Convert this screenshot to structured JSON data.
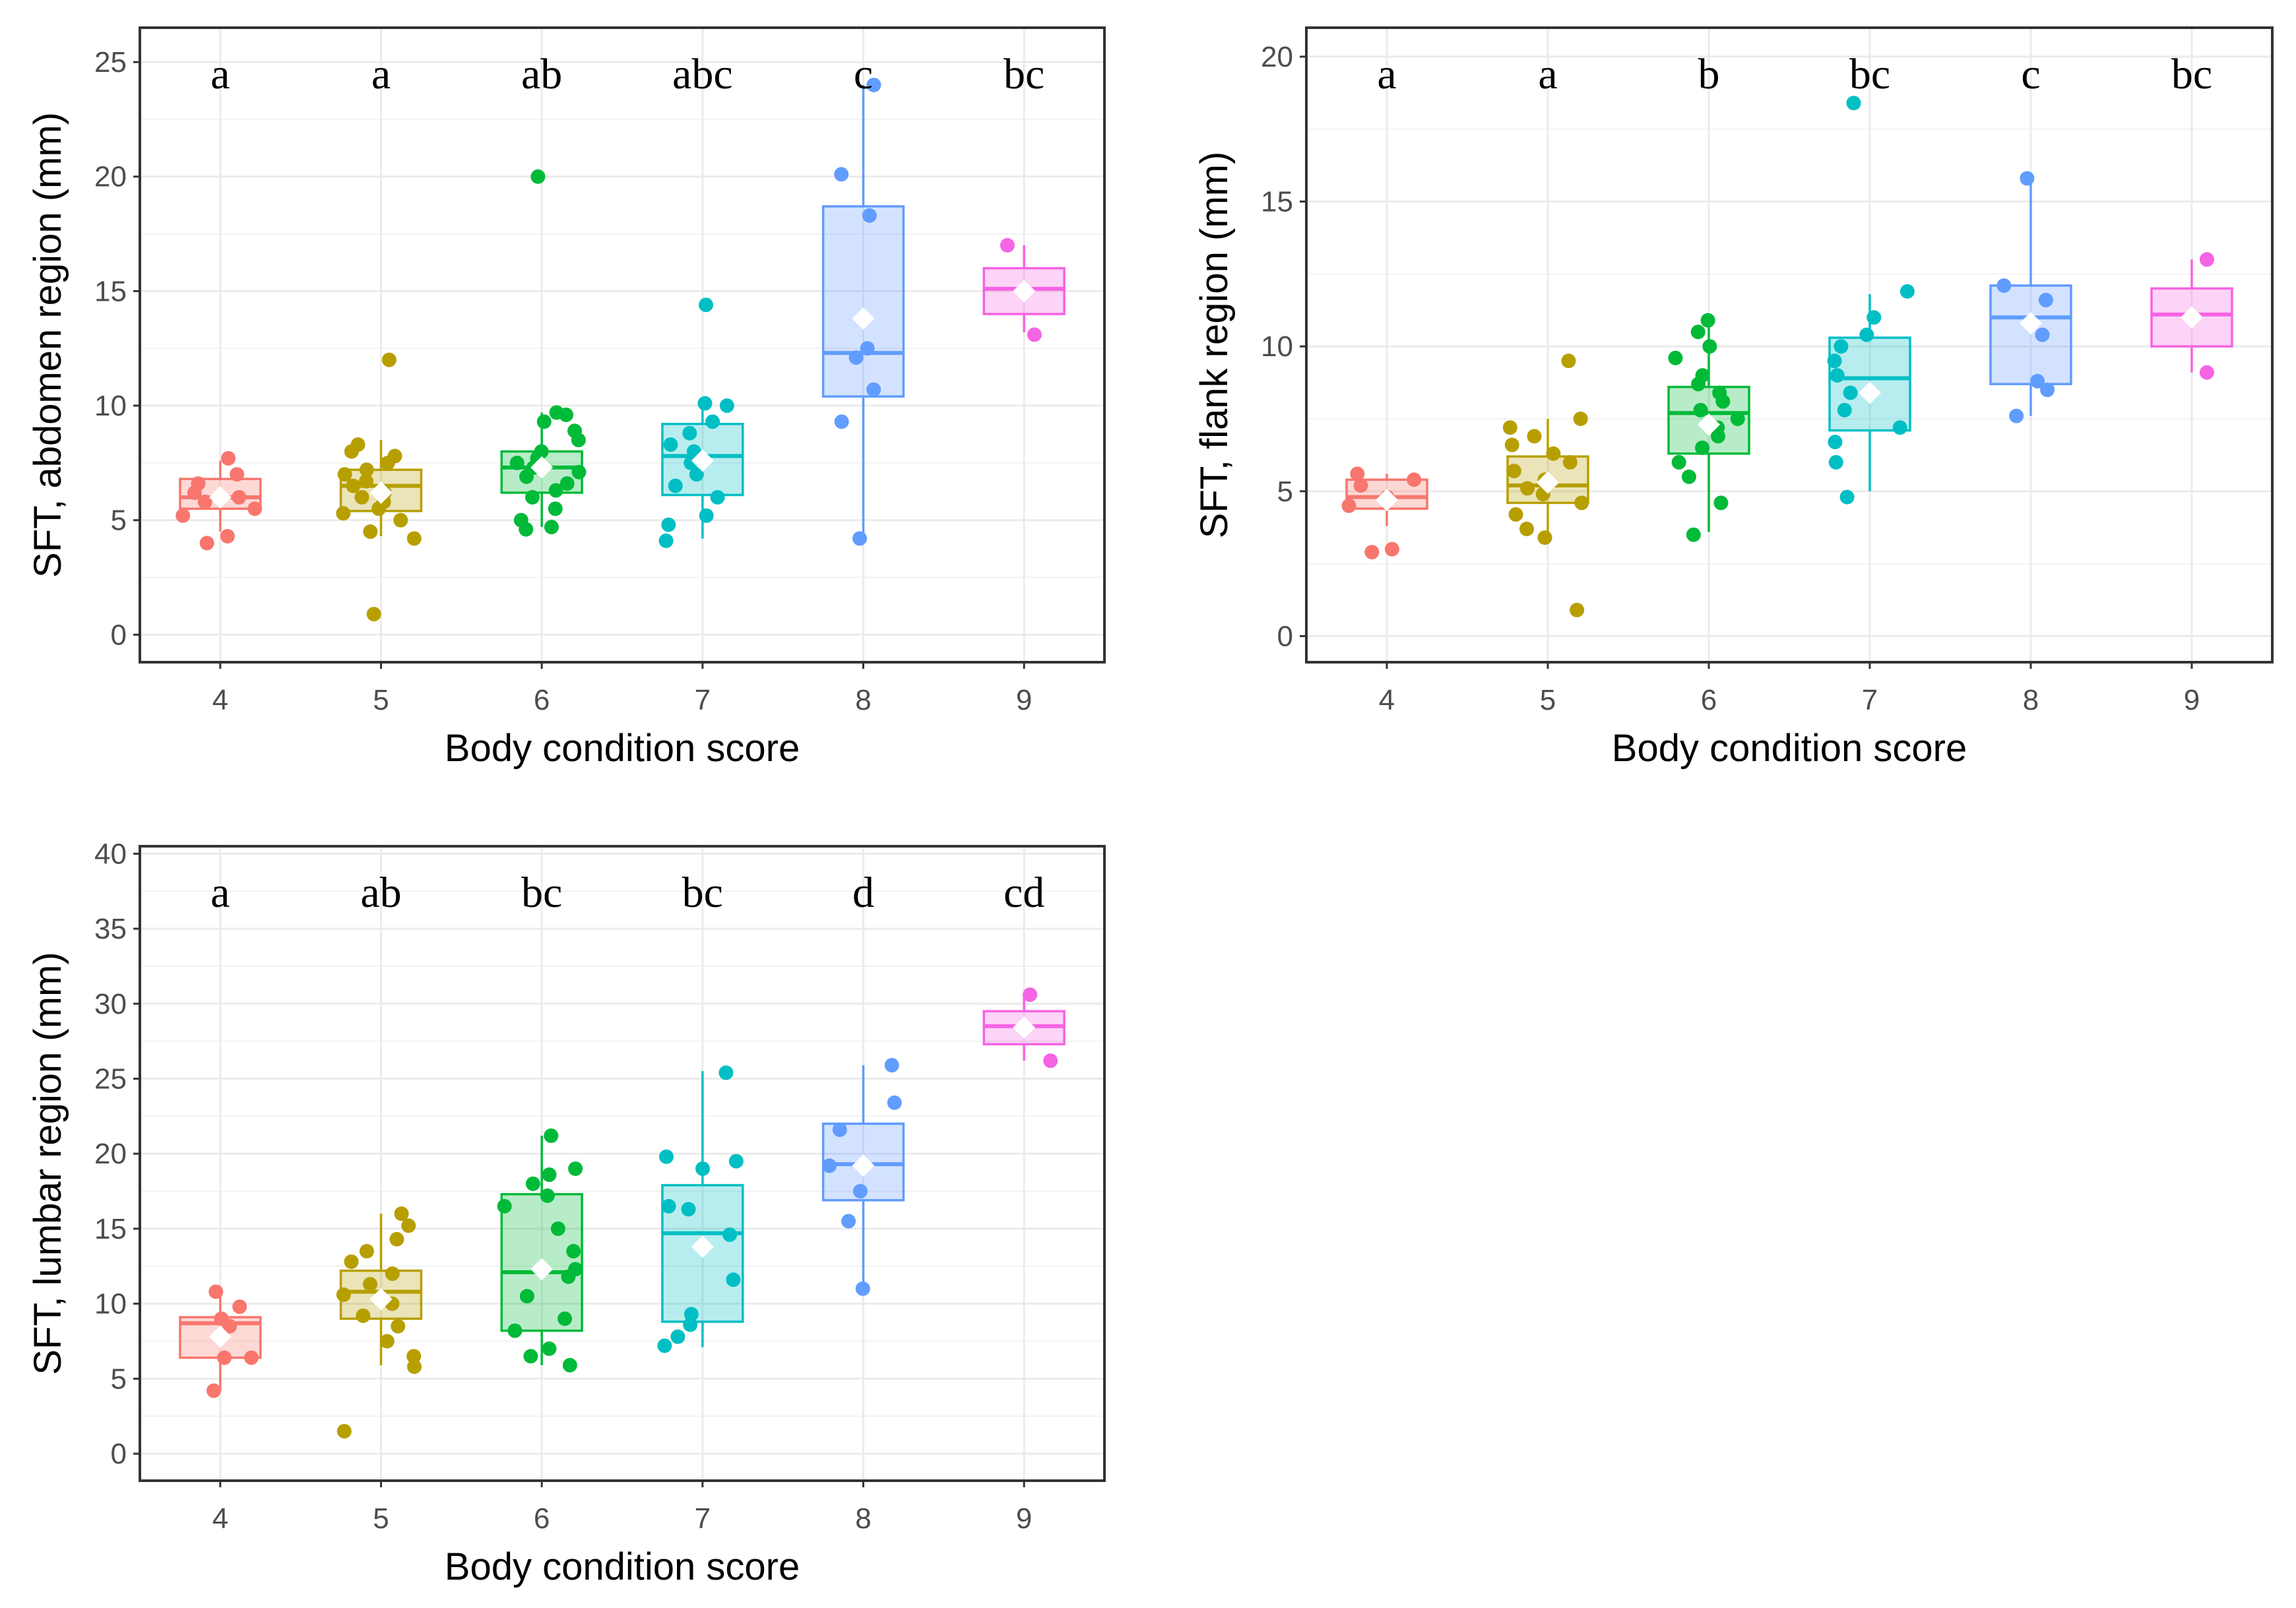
{
  "chart_data": [
    {
      "type": "boxplot",
      "ylabel": "SFT, abdomen region (mm)",
      "xlabel": "Body condition score",
      "ylim": [
        -1.2,
        26.5
      ],
      "yticks": [
        0,
        5,
        10,
        15,
        20,
        25
      ],
      "categories": [
        "4",
        "5",
        "6",
        "7",
        "8",
        "9"
      ],
      "letters": [
        "a",
        "a",
        "ab",
        "abc",
        "c",
        "bc"
      ],
      "groups": [
        {
          "q1": 5.5,
          "median": 6.0,
          "q3": 6.8,
          "lo": 4.5,
          "hi": 7.6,
          "mean": 6.0,
          "points": [
            4.0,
            4.3,
            5.2,
            5.5,
            5.8,
            6.0,
            6.2,
            6.6,
            7.0,
            7.7
          ]
        },
        {
          "q1": 5.4,
          "median": 6.5,
          "q3": 7.2,
          "lo": 4.3,
          "hi": 8.5,
          "mean": 6.2,
          "points": [
            0.9,
            4.2,
            4.5,
            5.0,
            5.3,
            5.5,
            5.8,
            6.0,
            6.2,
            6.5,
            6.7,
            7.0,
            7.2,
            7.5,
            7.8,
            8.0,
            8.3,
            12.0
          ]
        },
        {
          "q1": 6.2,
          "median": 7.3,
          "q3": 8.0,
          "lo": 4.7,
          "hi": 9.7,
          "mean": 7.3,
          "points": [
            4.6,
            4.7,
            5.0,
            5.5,
            6.0,
            6.3,
            6.6,
            6.9,
            7.1,
            7.3,
            7.5,
            7.7,
            8.0,
            8.5,
            8.9,
            9.3,
            9.6,
            9.7,
            20.0
          ]
        },
        {
          "q1": 6.1,
          "median": 7.8,
          "q3": 9.2,
          "lo": 4.2,
          "hi": 10.1,
          "mean": 7.6,
          "points": [
            4.1,
            4.8,
            5.2,
            6.0,
            6.5,
            7.0,
            7.5,
            8.0,
            8.3,
            8.8,
            9.3,
            10.0,
            10.1,
            14.4
          ]
        },
        {
          "q1": 10.4,
          "median": 12.3,
          "q3": 18.7,
          "lo": 4.4,
          "hi": 24.0,
          "mean": 13.8,
          "points": [
            4.2,
            9.3,
            10.7,
            12.1,
            12.5,
            18.3,
            20.1,
            24.0
          ]
        },
        {
          "q1": 14.0,
          "median": 15.1,
          "q3": 16.0,
          "lo": 13.2,
          "hi": 17.0,
          "mean": 15.0,
          "points": [
            13.1,
            17.0
          ]
        }
      ]
    },
    {
      "type": "boxplot",
      "ylabel": "SFT, flank region (mm)",
      "xlabel": "Body condition score",
      "ylim": [
        -0.9,
        21.0
      ],
      "yticks": [
        0,
        5,
        10,
        15,
        20
      ],
      "categories": [
        "4",
        "5",
        "6",
        "7",
        "8",
        "9"
      ],
      "letters": [
        "a",
        "a",
        "b",
        "bc",
        "c",
        "bc"
      ],
      "groups": [
        {
          "q1": 4.4,
          "median": 4.8,
          "q3": 5.4,
          "lo": 3.8,
          "hi": 5.6,
          "mean": 4.7,
          "points": [
            2.9,
            3.0,
            4.5,
            4.8,
            5.2,
            5.4,
            5.6
          ]
        },
        {
          "q1": 4.6,
          "median": 5.2,
          "q3": 6.2,
          "lo": 3.4,
          "hi": 7.5,
          "mean": 5.3,
          "points": [
            0.9,
            3.4,
            3.7,
            4.2,
            4.6,
            4.9,
            5.1,
            5.4,
            5.7,
            6.0,
            6.3,
            6.6,
            6.9,
            7.2,
            7.5,
            9.5
          ]
        },
        {
          "q1": 6.3,
          "median": 7.7,
          "q3": 8.6,
          "lo": 3.6,
          "hi": 10.9,
          "mean": 7.3,
          "points": [
            3.5,
            4.6,
            5.5,
            6.0,
            6.5,
            6.9,
            7.2,
            7.5,
            7.8,
            8.1,
            8.4,
            8.7,
            9.0,
            9.6,
            10.0,
            10.5,
            10.9
          ]
        },
        {
          "q1": 7.1,
          "median": 8.9,
          "q3": 10.3,
          "lo": 5.0,
          "hi": 11.8,
          "mean": 8.4,
          "points": [
            4.8,
            6.0,
            6.7,
            7.2,
            7.8,
            8.4,
            9.0,
            9.5,
            10.0,
            10.4,
            11.0,
            11.9,
            18.4
          ]
        },
        {
          "q1": 8.7,
          "median": 11.0,
          "q3": 12.1,
          "lo": 7.6,
          "hi": 15.8,
          "mean": 10.8,
          "points": [
            7.6,
            8.5,
            8.8,
            10.4,
            11.6,
            12.1,
            15.8
          ]
        },
        {
          "q1": 10.0,
          "median": 11.1,
          "q3": 12.0,
          "lo": 9.1,
          "hi": 13.0,
          "mean": 11.0,
          "points": [
            9.1,
            13.0
          ]
        }
      ]
    },
    {
      "type": "boxplot",
      "ylabel": "SFT, lumbar region (mm)",
      "xlabel": "Body condition score",
      "ylim": [
        -1.8,
        40.5
      ],
      "yticks": [
        0,
        5,
        10,
        15,
        20,
        25,
        30,
        35,
        40
      ],
      "categories": [
        "4",
        "5",
        "6",
        "7",
        "8",
        "9"
      ],
      "letters": [
        "a",
        "ab",
        "bc",
        "bc",
        "d",
        "cd"
      ],
      "groups": [
        {
          "q1": 6.4,
          "median": 8.7,
          "q3": 9.1,
          "lo": 4.2,
          "hi": 10.8,
          "mean": 7.8,
          "points": [
            4.2,
            6.4,
            6.4,
            8.5,
            9.0,
            9.8,
            10.8
          ]
        },
        {
          "q1": 9.0,
          "median": 10.8,
          "q3": 12.2,
          "lo": 5.9,
          "hi": 16.0,
          "mean": 10.3,
          "points": [
            1.5,
            5.8,
            6.5,
            7.5,
            8.5,
            9.2,
            10.0,
            10.6,
            11.3,
            12.0,
            12.8,
            13.5,
            14.3,
            15.2,
            16.0
          ]
        },
        {
          "q1": 8.2,
          "median": 12.1,
          "q3": 17.3,
          "lo": 5.9,
          "hi": 21.2,
          "mean": 12.3,
          "points": [
            5.9,
            6.5,
            7.0,
            8.2,
            9.0,
            10.5,
            11.8,
            12.3,
            13.5,
            15.0,
            16.5,
            17.2,
            18.0,
            18.6,
            19.0,
            21.2
          ]
        },
        {
          "q1": 8.8,
          "median": 14.7,
          "q3": 17.9,
          "lo": 7.1,
          "hi": 25.5,
          "mean": 13.8,
          "points": [
            7.2,
            7.8,
            8.6,
            9.3,
            11.6,
            14.6,
            16.3,
            16.5,
            19.0,
            19.5,
            19.8,
            25.4
          ]
        },
        {
          "q1": 16.9,
          "median": 19.3,
          "q3": 22.0,
          "lo": 11.0,
          "hi": 25.9,
          "mean": 19.2,
          "points": [
            11.0,
            15.5,
            17.5,
            19.2,
            21.6,
            23.4,
            25.9
          ]
        },
        {
          "q1": 27.3,
          "median": 28.5,
          "q3": 29.5,
          "lo": 26.2,
          "hi": 30.6,
          "mean": 28.4,
          "points": [
            26.2,
            30.6
          ]
        }
      ]
    }
  ],
  "colors": {
    "groups": [
      "#F8766D",
      "#B79F00",
      "#00BA38",
      "#00BFC4",
      "#619CFF",
      "#F564E3"
    ],
    "grid_major": "#ebebeb",
    "grid_minor": "#f2f2f2",
    "panel_border": "#333333",
    "mean_marker": "#ffffff"
  }
}
